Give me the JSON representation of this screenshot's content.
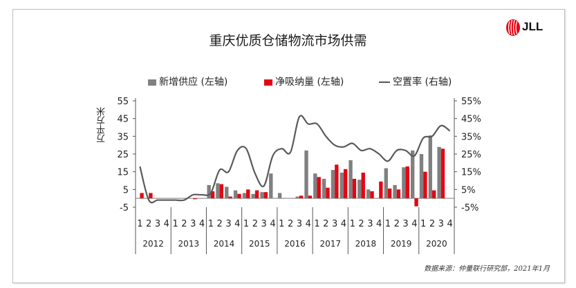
{
  "chart_data": {
    "type": "bar",
    "title": "重庆优质仓储物流市场供需",
    "ylabel": "万平方米",
    "left_ylim": [
      -5,
      55
    ],
    "left_ticks": [
      "-5",
      "5",
      "15",
      "25",
      "35",
      "45",
      "55"
    ],
    "right_ylim": [
      -5,
      55
    ],
    "right_ticks": [
      "-5%",
      "5%",
      "15%",
      "25%",
      "35%",
      "45%",
      "55%"
    ],
    "quarter_labels": [
      "1",
      "2",
      "3",
      "4"
    ],
    "years": [
      "2012",
      "2013",
      "2014",
      "2015",
      "2016",
      "2017",
      "2018",
      "2019",
      "2020"
    ],
    "series": [
      {
        "name": "新增供应 (左轴)",
        "kind": "bar",
        "axis": "left",
        "color": "#808080",
        "values": [
          0,
          0,
          0,
          0,
          0,
          0,
          0,
          0,
          7.5,
          8.5,
          6.5,
          4.5,
          3,
          2.5,
          3.5,
          14,
          3,
          0,
          1,
          27,
          14,
          11,
          16,
          14.5,
          21.5,
          10.5,
          5,
          0,
          17,
          7.5,
          17.5,
          27,
          25,
          35.5,
          29,
          0
        ]
      },
      {
        "name": "净吸纳量 (左轴)",
        "kind": "bar",
        "axis": "left",
        "color": "#e30613",
        "values": [
          3,
          3,
          0,
          0,
          0,
          0,
          -0.5,
          0,
          4,
          8,
          1,
          2.5,
          5,
          4.5,
          3.5,
          0,
          0,
          0,
          1.5,
          1.5,
          12,
          6,
          19,
          16.5,
          11,
          14.5,
          4,
          9.5,
          5.5,
          5,
          18,
          -4.5,
          15,
          4.5,
          28,
          0
        ]
      },
      {
        "name": "空置率 (右轴)",
        "kind": "line",
        "axis": "right",
        "color": "#595959",
        "values": [
          18,
          -1,
          -1,
          -1,
          -1,
          -1,
          2,
          2,
          3,
          16,
          15,
          27,
          28,
          14,
          7,
          24,
          28,
          26,
          46,
          42,
          42,
          35,
          30,
          29,
          31,
          27,
          28,
          25,
          21,
          27,
          27,
          24,
          34,
          35,
          41,
          38
        ]
      }
    ],
    "source": "数据来源：仲量联行研究部，2021年1月",
    "logo_text": "JLL"
  }
}
